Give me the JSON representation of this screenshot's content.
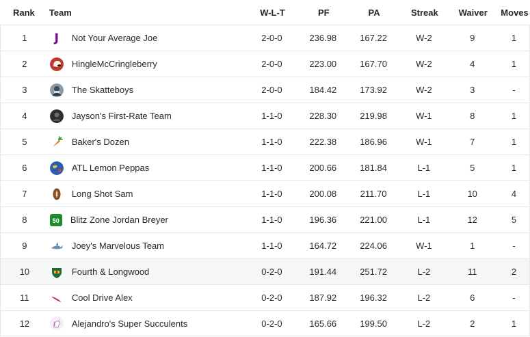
{
  "columns": {
    "rank": "Rank",
    "team": "Team",
    "wlt": "W-L-T",
    "pf": "PF",
    "pa": "PA",
    "streak": "Streak",
    "waiver": "Waiver",
    "moves": "Moves"
  },
  "rows": [
    {
      "rank": "1",
      "team": "Not Your Average Joe",
      "avatar": "letter-j-logo",
      "wlt": "2-0-0",
      "pf": "236.98",
      "pa": "167.22",
      "streak": "W-2",
      "waiver": "9",
      "moves": "1"
    },
    {
      "rank": "2",
      "team": "HingleMcCringleberry",
      "avatar": "red-helmet-icon",
      "wlt": "2-0-0",
      "pf": "223.00",
      "pa": "167.70",
      "streak": "W-2",
      "waiver": "4",
      "moves": "1"
    },
    {
      "rank": "3",
      "team": "The Skatteboys",
      "avatar": "skater-photo-icon",
      "wlt": "2-0-0",
      "pf": "184.42",
      "pa": "173.92",
      "streak": "W-2",
      "waiver": "3",
      "moves": "-"
    },
    {
      "rank": "4",
      "team": "Jayson's First-Rate Team",
      "avatar": "dark-photo-icon",
      "wlt": "1-1-0",
      "pf": "228.30",
      "pa": "219.98",
      "streak": "W-1",
      "waiver": "8",
      "moves": "1"
    },
    {
      "rank": "5",
      "team": "Baker's Dozen",
      "avatar": "carrot-icon",
      "wlt": "1-1-0",
      "pf": "222.38",
      "pa": "186.96",
      "streak": "W-1",
      "waiver": "7",
      "moves": "1"
    },
    {
      "rank": "6",
      "team": "ATL Lemon Peppas",
      "avatar": "globe-icon",
      "wlt": "1-1-0",
      "pf": "200.66",
      "pa": "181.84",
      "streak": "L-1",
      "waiver": "5",
      "moves": "1"
    },
    {
      "rank": "7",
      "team": "Long Shot Sam",
      "avatar": "football-icon",
      "wlt": "1-1-0",
      "pf": "200.08",
      "pa": "211.70",
      "streak": "L-1",
      "waiver": "10",
      "moves": "4"
    },
    {
      "rank": "8",
      "team": "Blitz Zone Jordan Breyer",
      "avatar": "badge-50-icon",
      "avatar_text": "50",
      "wlt": "1-1-0",
      "pf": "196.36",
      "pa": "221.00",
      "streak": "L-1",
      "waiver": "12",
      "moves": "5"
    },
    {
      "rank": "9",
      "team": "Joey's Marvelous Team",
      "avatar": "shark-icon",
      "wlt": "1-1-0",
      "pf": "164.72",
      "pa": "224.06",
      "streak": "W-1",
      "waiver": "1",
      "moves": "-"
    },
    {
      "rank": "10",
      "team": "Fourth & Longwood",
      "avatar": "crest-icon",
      "wlt": "0-2-0",
      "pf": "191.44",
      "pa": "251.72",
      "streak": "L-2",
      "waiver": "11",
      "moves": "2"
    },
    {
      "rank": "11",
      "team": "Cool Drive Alex",
      "avatar": "feather-icon",
      "wlt": "0-2-0",
      "pf": "187.92",
      "pa": "196.32",
      "streak": "L-2",
      "waiver": "6",
      "moves": "-"
    },
    {
      "rank": "12",
      "team": "Alejandro's Super Succulents",
      "avatar": "unicorn-icon",
      "wlt": "0-2-0",
      "pf": "165.66",
      "pa": "199.50",
      "streak": "L-2",
      "waiver": "2",
      "moves": "1"
    }
  ],
  "highlighted_row_rank": "10",
  "colors": {
    "text": "#26282a",
    "border": "#e4e6e8",
    "highlight_bg": "#f5f6f7",
    "logo_purple": "#7b0099",
    "badge_green": "#1c8c2c"
  }
}
